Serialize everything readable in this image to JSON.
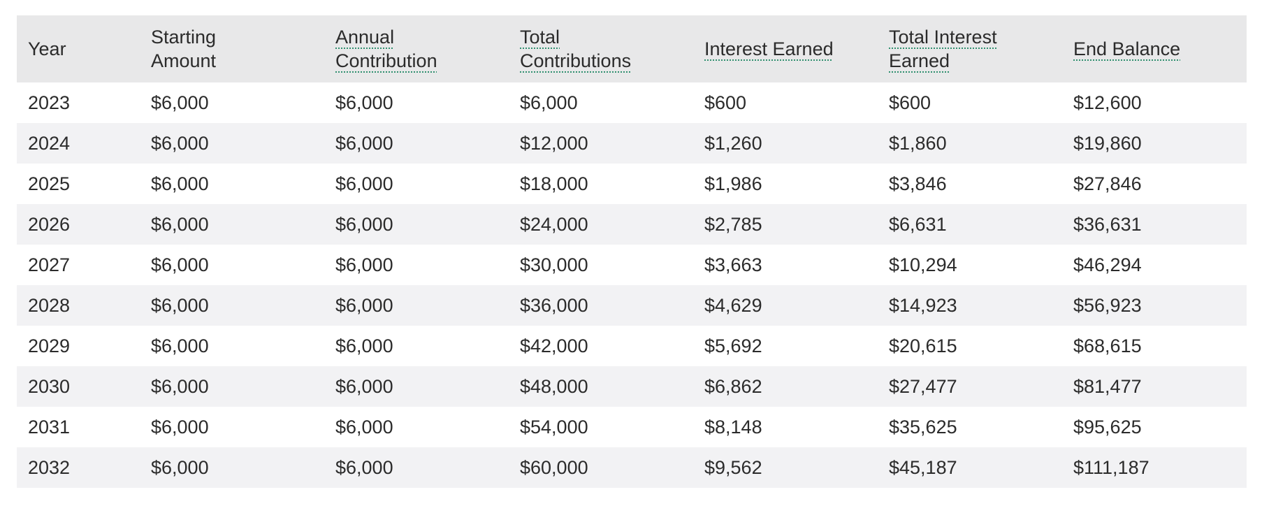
{
  "table": {
    "columns": [
      {
        "label": "Year",
        "dotted": false
      },
      {
        "label": "Starting Amount",
        "dotted": false
      },
      {
        "label": "Annual Contribution",
        "dotted": true
      },
      {
        "label": "Total Contributions",
        "dotted": true
      },
      {
        "label": "Interest Earned",
        "dotted": true
      },
      {
        "label": "Total Interest Earned",
        "dotted": true
      },
      {
        "label": "End Balance",
        "dotted": true
      }
    ],
    "rows": [
      [
        "2023",
        "$6,000",
        "$6,000",
        "$6,000",
        "$600",
        "$600",
        "$12,600"
      ],
      [
        "2024",
        "$6,000",
        "$6,000",
        "$12,000",
        "$1,260",
        "$1,860",
        "$19,860"
      ],
      [
        "2025",
        "$6,000",
        "$6,000",
        "$18,000",
        "$1,986",
        "$3,846",
        "$27,846"
      ],
      [
        "2026",
        "$6,000",
        "$6,000",
        "$24,000",
        "$2,785",
        "$6,631",
        "$36,631"
      ],
      [
        "2027",
        "$6,000",
        "$6,000",
        "$30,000",
        "$3,663",
        "$10,294",
        "$46,294"
      ],
      [
        "2028",
        "$6,000",
        "$6,000",
        "$36,000",
        "$4,629",
        "$14,923",
        "$56,923"
      ],
      [
        "2029",
        "$6,000",
        "$6,000",
        "$42,000",
        "$5,692",
        "$20,615",
        "$68,615"
      ],
      [
        "2030",
        "$6,000",
        "$6,000",
        "$48,000",
        "$6,862",
        "$27,477",
        "$81,477"
      ],
      [
        "2031",
        "$6,000",
        "$6,000",
        "$54,000",
        "$8,148",
        "$35,625",
        "$95,625"
      ],
      [
        "2032",
        "$6,000",
        "$6,000",
        "$60,000",
        "$9,562",
        "$45,187",
        "$111,187"
      ]
    ]
  },
  "colors": {
    "header_bg": "#e8e8e9",
    "stripe_bg": "#f2f2f4",
    "text": "#2b2b2b",
    "dotted_underline": "#2f8f6e"
  }
}
